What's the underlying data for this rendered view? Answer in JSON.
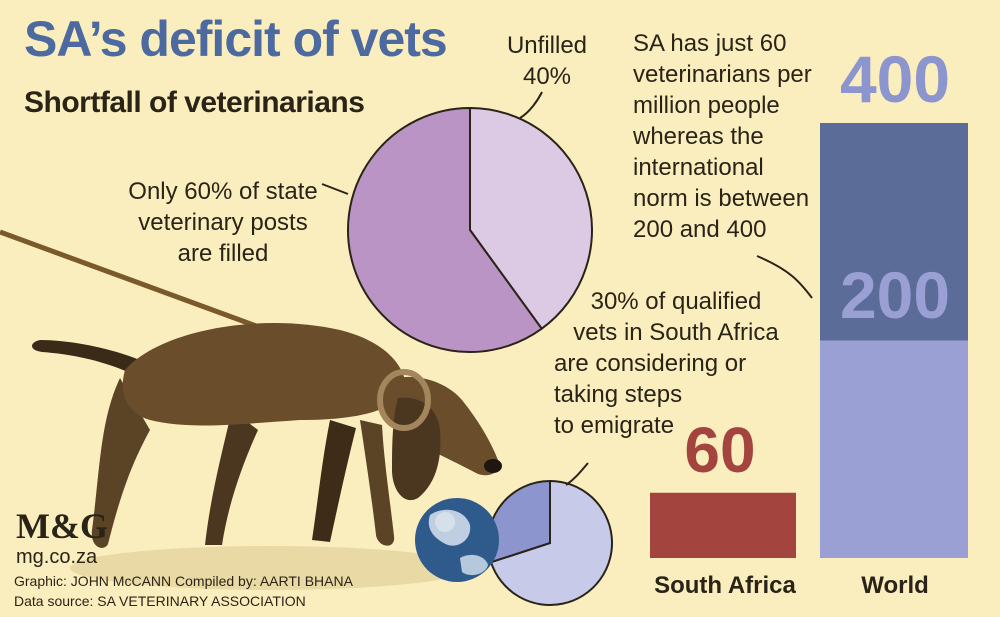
{
  "header": {
    "title": "SA’s deficit of vets",
    "subtitle": "Shortfall of veterinarians"
  },
  "pie_top": {
    "label_left": [
      "Only 60% of state",
      "veterinary posts",
      "are filled"
    ],
    "label_top": [
      "Unfilled",
      "40%"
    ]
  },
  "pie_bottom": {
    "label": [
      "30% of qualified",
      "vets in South Africa",
      "are considering or",
      "taking steps",
      "to emigrate"
    ]
  },
  "bars_note": [
    "SA has just 60",
    "veterinarians per",
    "million people",
    "whereas the",
    "international",
    "norm is between",
    "200 and 400"
  ],
  "footer": {
    "logo": "M&G",
    "site": "mg.co.za",
    "credit_line": "Graphic: JOHN McCANN  Compiled by: AARTI BHANA",
    "source_line": "Data source: SA VETERINARY ASSOCIATION"
  },
  "colors": {
    "background": "#fbeebe",
    "title": "#4d6aa0",
    "pie_filled": "#bb94c6",
    "pie_unfilled": "#dcc9e3",
    "pie2_major": "#c7cbe9",
    "pie2_minor": "#8c95cd",
    "sa_bar": "#a3453e",
    "world_upper": "#5b6c98",
    "world_lower": "#9aa0d4",
    "world_label": "#8c95cd"
  },
  "chart_data": [
    {
      "type": "pie",
      "slices": [
        {
          "label": "Only 60% of state veterinary posts are filled",
          "value": 60
        },
        {
          "label": "Unfilled 40%",
          "value": 40
        }
      ]
    },
    {
      "type": "pie",
      "slices": [
        {
          "label": "30% of qualified vets in South Africa are considering or taking steps to emigrate",
          "value": 30
        },
        {
          "label": "",
          "value": 70
        }
      ]
    },
    {
      "type": "bar",
      "categories": [
        "South Africa",
        "World"
      ],
      "values": [
        60,
        400
      ],
      "value_labels": [
        "60",
        "400"
      ],
      "world_range": [
        200,
        400
      ],
      "world_range_label": "200",
      "ylim": [
        0,
        400
      ]
    }
  ]
}
